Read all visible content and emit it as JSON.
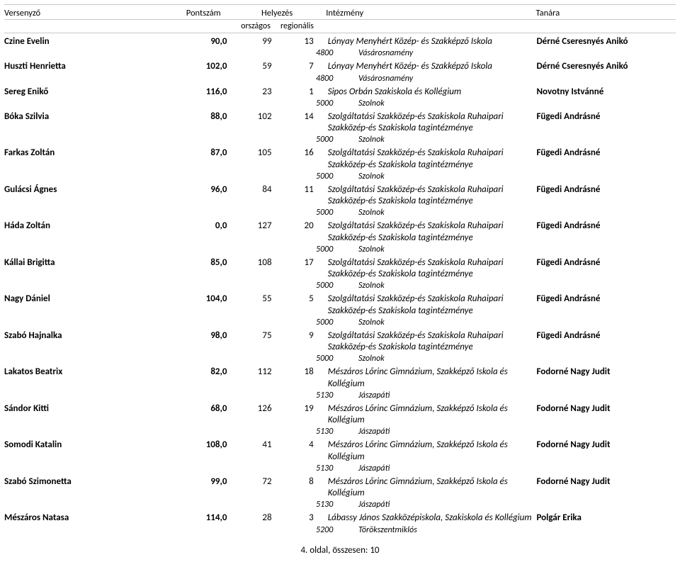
{
  "header": {
    "competitor": "Versenyző",
    "score": "Pontszám",
    "placement": "Helyezés",
    "institution": "Intézmény",
    "teacher": "Tanára",
    "national": "országos",
    "regional": "regionális"
  },
  "rows": [
    {
      "name": "Czine Evelin",
      "score": "90,0",
      "nat": "99",
      "reg": "13",
      "inst": "Lónyay Menyhért Közép- és Szakképző Iskola",
      "zip": "4800",
      "city": "Vásárosnamény",
      "teacher": "Dérné Cseresnyés Anikó"
    },
    {
      "name": "Huszti Henrietta",
      "score": "102,0",
      "nat": "59",
      "reg": "7",
      "inst": "Lónyay Menyhért Közép- és Szakképző Iskola",
      "zip": "4800",
      "city": "Vásárosnamény",
      "teacher": "Dérné Cseresnyés Anikó"
    },
    {
      "name": "Sereg Enikő",
      "score": "116,0",
      "nat": "23",
      "reg": "1",
      "inst": "Sipos Orbán Szakiskola és Kollégium",
      "zip": "5000",
      "city": "Szolnok",
      "teacher": "Novotny Istvánné"
    },
    {
      "name": "Bóka Szilvia",
      "score": "88,0",
      "nat": "102",
      "reg": "14",
      "inst": "Szolgáltatási Szakközép-és Szakiskola Ruhaipari Szakközép-és Szakiskola tagintézménye",
      "zip": "5000",
      "city": "Szolnok",
      "teacher": "Fügedi Andrásné"
    },
    {
      "name": "Farkas Zoltán",
      "score": "87,0",
      "nat": "105",
      "reg": "16",
      "inst": "Szolgáltatási Szakközép-és Szakiskola Ruhaipari Szakközép-és Szakiskola tagintézménye",
      "zip": "5000",
      "city": "Szolnok",
      "teacher": "Fügedi Andrásné"
    },
    {
      "name": "Gulácsi Ágnes",
      "score": "96,0",
      "nat": "84",
      "reg": "11",
      "inst": "Szolgáltatási Szakközép-és Szakiskola Ruhaipari Szakközép-és Szakiskola tagintézménye",
      "zip": "5000",
      "city": "Szolnok",
      "teacher": "Fügedi Andrásné"
    },
    {
      "name": "Háda Zoltán",
      "score": "0,0",
      "nat": "127",
      "reg": "20",
      "inst": "Szolgáltatási Szakközép-és Szakiskola Ruhaipari Szakközép-és Szakiskola tagintézménye",
      "zip": "5000",
      "city": "Szolnok",
      "teacher": "Fügedi Andrásné"
    },
    {
      "name": "Kállai Brigitta",
      "score": "85,0",
      "nat": "108",
      "reg": "17",
      "inst": "Szolgáltatási Szakközép-és Szakiskola Ruhaipari Szakközép-és Szakiskola tagintézménye",
      "zip": "5000",
      "city": "Szolnok",
      "teacher": "Fügedi Andrásné"
    },
    {
      "name": "Nagy Dániel",
      "score": "104,0",
      "nat": "55",
      "reg": "5",
      "inst": "Szolgáltatási Szakközép-és Szakiskola Ruhaipari Szakközép-és Szakiskola tagintézménye",
      "zip": "5000",
      "city": "Szolnok",
      "teacher": "Fügedi Andrásné"
    },
    {
      "name": "Szabó Hajnalka",
      "score": "98,0",
      "nat": "75",
      "reg": "9",
      "inst": "Szolgáltatási Szakközép-és Szakiskola Ruhaipari Szakközép-és Szakiskola tagintézménye",
      "zip": "5000",
      "city": "Szolnok",
      "teacher": "Fügedi Andrásné"
    },
    {
      "name": "Lakatos Beatrix",
      "score": "82,0",
      "nat": "112",
      "reg": "18",
      "inst": "Mészáros Lőrinc Gimnázium, Szakképző Iskola és Kollégium",
      "zip": "5130",
      "city": "Jászapáti",
      "teacher": "Fodorné Nagy Judit"
    },
    {
      "name": "Sándor Kitti",
      "score": "68,0",
      "nat": "126",
      "reg": "19",
      "inst": "Mészáros Lőrinc Gimnázium, Szakképző Iskola és Kollégium",
      "zip": "5130",
      "city": "Jászapáti",
      "teacher": "Fodorné Nagy Judit"
    },
    {
      "name": "Somodi Katalin",
      "score": "108,0",
      "nat": "41",
      "reg": "4",
      "inst": "Mészáros Lőrinc Gimnázium, Szakképző Iskola és Kollégium",
      "zip": "5130",
      "city": "Jászapáti",
      "teacher": "Fodorné Nagy Judit"
    },
    {
      "name": "Szabó Szimonetta",
      "score": "99,0",
      "nat": "72",
      "reg": "8",
      "inst": "Mészáros Lőrinc Gimnázium, Szakképző Iskola és Kollégium",
      "zip": "5130",
      "city": "Jászapáti",
      "teacher": "Fodorné Nagy Judit"
    },
    {
      "name": "Mészáros Natasa",
      "score": "114,0",
      "nat": "28",
      "reg": "3",
      "inst": "Lábassy János Szakközépiskola, Szakiskola és Kollégium",
      "zip": "5200",
      "city": "Törökszentmiklós",
      "teacher": "Polgár Erika"
    }
  ],
  "footer": "4. oldal, összesen: 10"
}
